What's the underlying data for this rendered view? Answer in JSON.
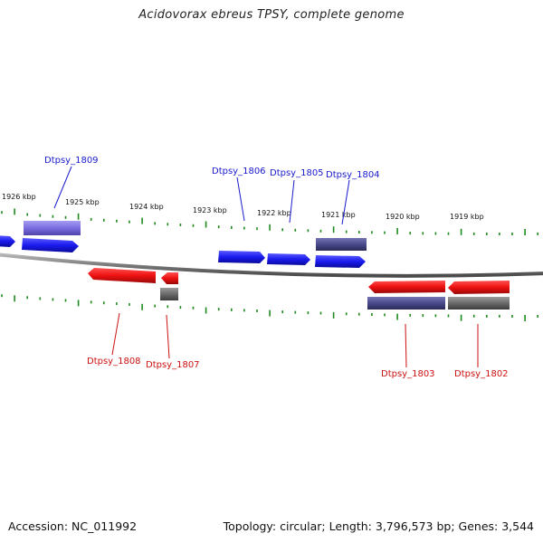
{
  "title": "Acidovorax ebreus TPSY, complete genome",
  "footer": {
    "accession": "Accession: NC_011992",
    "summary": "Topology: circular; Length: 3,796,573 bp; Genes: 3,544"
  },
  "colors": {
    "forward_gene": "#1a1aee",
    "reverse_gene": "#ee1111",
    "forward_cds": "#7a6ee0",
    "reverse_cds": "#4a4a8a",
    "pseudo": "#6a6a6a",
    "tick": "#1d8a1d",
    "backbone": "#808080",
    "label_forward": "#1a1acc",
    "label_reverse": "#cc1111"
  },
  "scale": {
    "unit": "kbp",
    "labels": [
      "1926 kbp",
      "1925 kbp",
      "1924 kbp",
      "1923 kbp",
      "1922 kbp",
      "1921 kbp",
      "1920 kbp",
      "1919 kbp"
    ]
  },
  "genes": [
    {
      "label": "Dtpsy_1809",
      "strand": "forward"
    },
    {
      "label": "Dtpsy_1806",
      "strand": "forward"
    },
    {
      "label": "Dtpsy_1805",
      "strand": "forward"
    },
    {
      "label": "Dtpsy_1804",
      "strand": "forward"
    },
    {
      "label": "Dtpsy_1808",
      "strand": "reverse"
    },
    {
      "label": "Dtpsy_1807",
      "strand": "reverse"
    },
    {
      "label": "Dtpsy_1803",
      "strand": "reverse"
    },
    {
      "label": "Dtpsy_1802",
      "strand": "reverse"
    }
  ]
}
